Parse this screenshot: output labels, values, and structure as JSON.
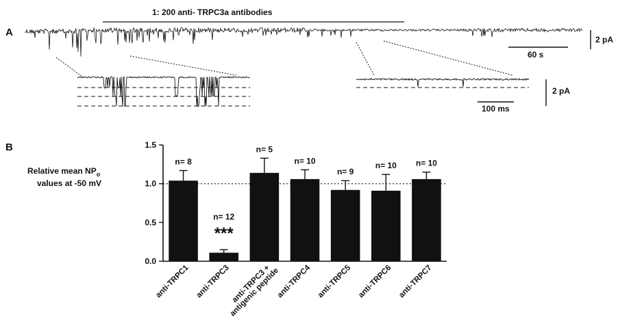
{
  "figure": {
    "panel_a_letter": "A",
    "panel_b_letter": "B",
    "panel_a": {
      "treatment_label": "1: 200 anti- TRPC3a antibodies",
      "scale_time_long": "60 s",
      "scale_current": "2 pA",
      "scale_current_zoom": "2 pA",
      "scale_time_short": "100 ms"
    }
  },
  "chart_data": {
    "type": "bar",
    "ylabel_line1": "Relative mean NP",
    "ylabel_sub": "o",
    "ylabel_line2": "values at -50 mV",
    "ylim": [
      0,
      1.5
    ],
    "yticks": [
      "0.0",
      "0.5",
      "1.0",
      "1.5"
    ],
    "reference_line": 1.0,
    "grid": false,
    "categories": [
      [
        "anti-TRPC1"
      ],
      [
        "anti-TRPC3"
      ],
      [
        "anti-TRPC3 +",
        "antigenic peptide"
      ],
      [
        "anti-TRPC4"
      ],
      [
        "anti-TRPC5"
      ],
      [
        "anti-TRPC6"
      ],
      [
        "anti-TRPC7"
      ]
    ],
    "values": [
      1.04,
      0.11,
      1.14,
      1.06,
      0.92,
      0.91,
      1.06
    ],
    "errors": [
      0.13,
      0.04,
      0.19,
      0.12,
      0.12,
      0.21,
      0.09
    ],
    "n_labels": [
      "n= 8",
      "n= 12",
      "n= 5",
      "n= 10",
      "n= 9",
      "n= 10",
      "n= 10"
    ],
    "significance": [
      "",
      "***",
      "",
      "",
      "",
      "",
      ""
    ],
    "bar_color": "#111111"
  }
}
